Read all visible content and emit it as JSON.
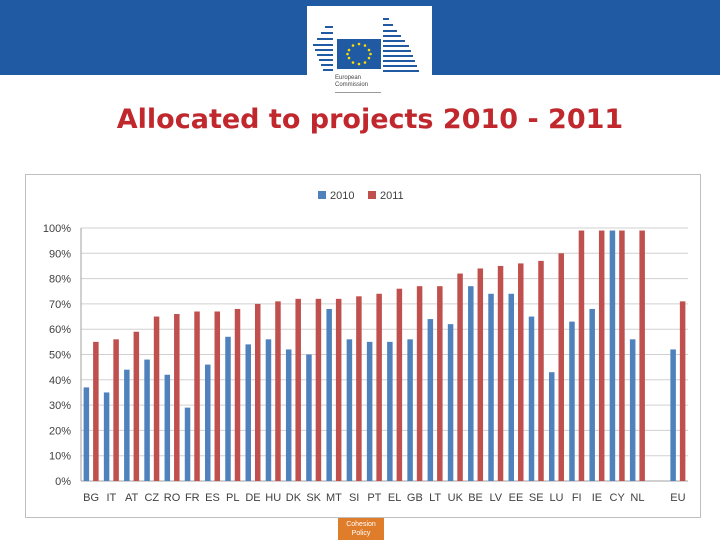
{
  "header": {
    "logo_line1": "European",
    "logo_line2": "Commission"
  },
  "slide_title": "Allocated to projects 2010 - 2011",
  "footer": {
    "line1": "Cohesion",
    "line2": "Policy"
  },
  "colors": {
    "banner": "#1f5aa3",
    "title": "#c0282e",
    "series_2010": "#4f81bd",
    "series_2011": "#c0504d"
  },
  "chart_data": {
    "type": "bar",
    "title": "",
    "xlabel": "",
    "ylabel": "",
    "ylim": [
      0,
      100
    ],
    "yticks": [
      "0%",
      "10%",
      "20%",
      "30%",
      "40%",
      "50%",
      "60%",
      "70%",
      "80%",
      "90%",
      "100%"
    ],
    "legend_position": "top-center",
    "categories": [
      "BG",
      "IT",
      "AT",
      "CZ",
      "RO",
      "FR",
      "ES",
      "PL",
      "DE",
      "HU",
      "DK",
      "SK",
      "MT",
      "SI",
      "PT",
      "EL",
      "GB",
      "LT",
      "UK",
      "BE",
      "LV",
      "EE",
      "SE",
      "LU",
      "FI",
      "IE",
      "CY",
      "NL",
      "",
      "EU"
    ],
    "series": [
      {
        "name": "2010",
        "color": "#4f81bd",
        "values": [
          37,
          35,
          44,
          48,
          42,
          29,
          46,
          57,
          54,
          56,
          52,
          50,
          68,
          56,
          55,
          55,
          56,
          64,
          62,
          77,
          74,
          74,
          65,
          43,
          63,
          68,
          99,
          56,
          null,
          52
        ]
      },
      {
        "name": "2011",
        "color": "#c0504d",
        "values": [
          55,
          56,
          59,
          65,
          66,
          67,
          67,
          68,
          70,
          71,
          72,
          72,
          72,
          73,
          74,
          76,
          77,
          77,
          82,
          84,
          85,
          86,
          87,
          90,
          99,
          99,
          99,
          99,
          null,
          71
        ]
      }
    ]
  }
}
